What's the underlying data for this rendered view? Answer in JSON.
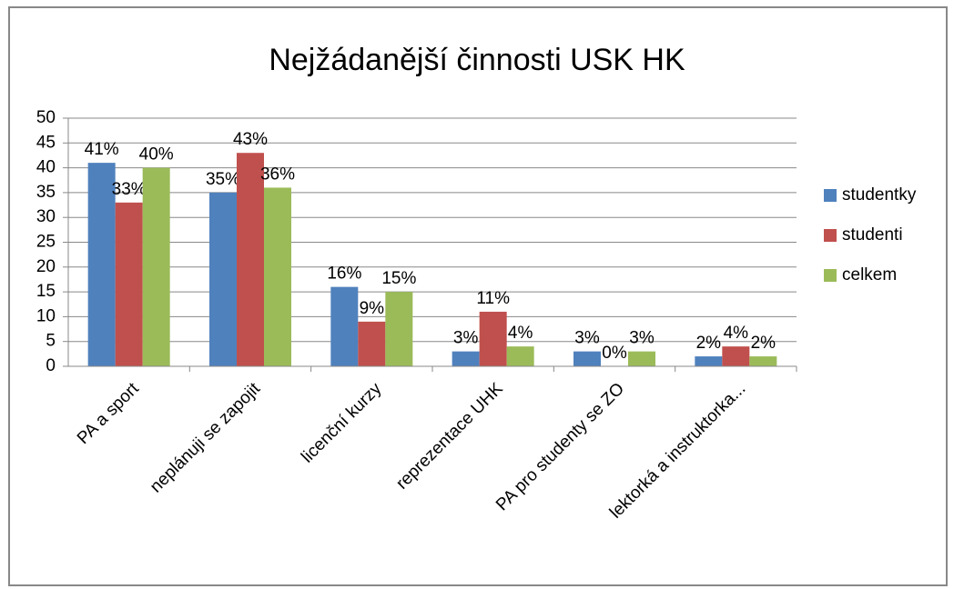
{
  "chart_data": {
    "type": "bar",
    "title": "Nejžádanější činnosti USK HK",
    "categories": [
      "PA a sport",
      "neplánuji se zapojit",
      "licenční kurzy",
      "reprezentace UHK",
      "PA pro studenty se ZO",
      "lektorká a instruktorka..."
    ],
    "series": [
      {
        "name": "studentky",
        "color": "#4f81bd",
        "values": [
          41,
          35,
          16,
          3,
          3,
          2
        ],
        "value_labels": [
          "41%",
          "35%",
          "16%",
          "3%",
          "3%",
          "2%"
        ]
      },
      {
        "name": "studenti",
        "color": "#c0504d",
        "values": [
          33,
          43,
          9,
          11,
          0,
          4
        ],
        "value_labels": [
          "33%",
          "43%",
          "9%",
          "11%",
          "0%",
          "4%"
        ]
      },
      {
        "name": "celkem",
        "color": "#9bbb59",
        "values": [
          40,
          36,
          15,
          4,
          3,
          2
        ],
        "value_labels": [
          "40%",
          "36%",
          "15%",
          "4%",
          "3%",
          "2%"
        ]
      }
    ],
    "ylim": [
      0,
      50
    ],
    "yticks": [
      0,
      5,
      10,
      15,
      20,
      25,
      30,
      35,
      40,
      45,
      50
    ],
    "grid": true,
    "legend": "right"
  }
}
